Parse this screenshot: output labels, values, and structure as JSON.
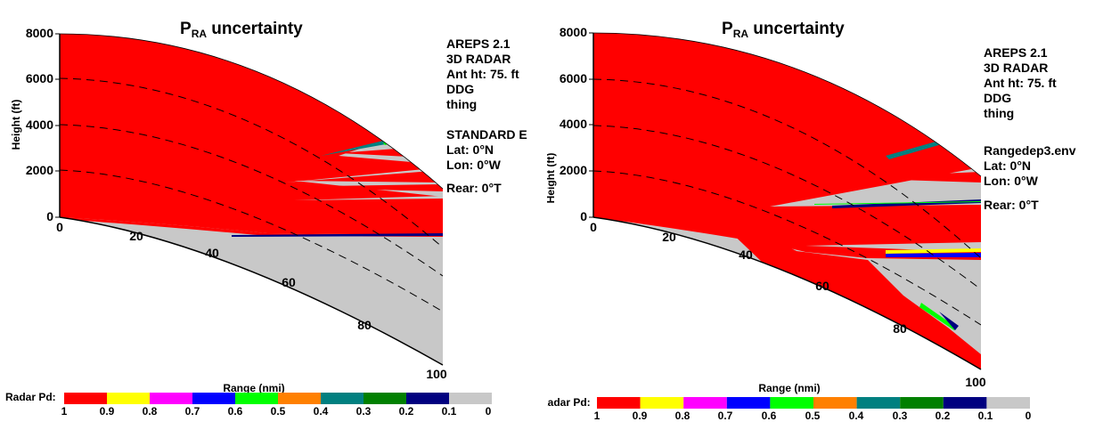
{
  "chart_data": [
    {
      "type": "heatmap",
      "title_main": "P",
      "title_sub": "RA",
      "title_rest": " uncertainty",
      "xlabel": "Range (nmi)",
      "ylabel": "Height (ft)",
      "xlim": [
        0,
        100
      ],
      "ylim": [
        0,
        8000
      ],
      "y_ticks": [
        "0",
        "2000",
        "4000",
        "6000",
        "8000"
      ],
      "x_ticks": [
        "0",
        "20",
        "40",
        "60",
        "80",
        "100"
      ],
      "info_lines": [
        "AREPS 2.1",
        "3D RADAR",
        "Ant ht: 75. ft",
        "DDG",
        "thing"
      ],
      "env_lines": [
        "STANDARD E",
        "Lat: 0°N",
        "Lon: 0°W"
      ],
      "rear_line": "Rear: 0°T",
      "legend_label": "Radar Pd:",
      "legend_ticks": [
        "1",
        "0.9",
        "0.8",
        "0.7",
        "0.6",
        "0.5",
        "0.4",
        "0.3",
        "0.2",
        "0.1",
        "0"
      ]
    },
    {
      "type": "heatmap",
      "title_main": "P",
      "title_sub": "RA",
      "title_rest": " uncertainty",
      "xlabel": "Range (nmi)",
      "ylabel": "Height (ft)",
      "xlim": [
        0,
        100
      ],
      "ylim": [
        0,
        8000
      ],
      "y_ticks": [
        "0",
        "2000",
        "4000",
        "6000",
        "8000"
      ],
      "x_ticks": [
        "0",
        "20",
        "40",
        "60",
        "80",
        "100"
      ],
      "info_lines": [
        "AREPS 2.1",
        "3D RADAR",
        "Ant ht: 75. ft",
        "DDG",
        "thing"
      ],
      "env_lines": [
        "Rangedep3.env",
        "Lat: 0°N",
        "Lon: 0°W"
      ],
      "rear_line": "Rear: 0°T",
      "legend_label": "Radar Pd:",
      "legend_ticks": [
        "1",
        "0.9",
        "0.8",
        "0.7",
        "0.6",
        "0.5",
        "0.4",
        "0.3",
        "0.2",
        "0.1",
        "0"
      ]
    }
  ],
  "legend_colors": [
    "#ff0000",
    "#ffff00",
    "#ff00ff",
    "#0000ff",
    "#00ff00",
    "#ff8000",
    "#008080",
    "#008000",
    "#000080",
    "#c8c8c8"
  ],
  "colors": {
    "high_pd": "#ff0000",
    "low_pd": "#c8c8c8",
    "outline": "#000000"
  }
}
